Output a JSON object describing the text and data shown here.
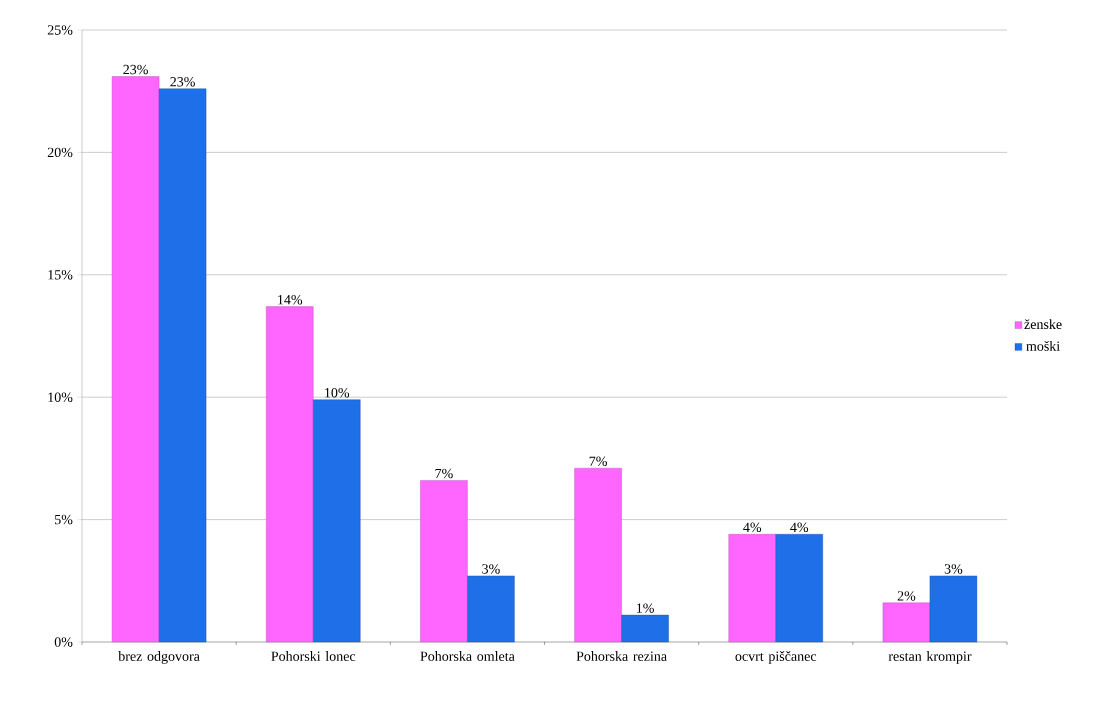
{
  "chart_data": {
    "type": "bar",
    "categories": [
      "brez odgovora",
      "Pohorski lonec",
      "Pohorska omleta",
      "Pohorska rezina",
      "ocvrt piščanec",
      "restan krompir"
    ],
    "series": [
      {
        "name": "ženske",
        "color": "#ff66ff",
        "values": [
          23.1,
          13.7,
          6.6,
          7.1,
          4.4,
          1.6
        ],
        "value_labels": [
          "23%",
          "14%",
          "7%",
          "7%",
          "4%",
          "2%"
        ]
      },
      {
        "name": "moški",
        "color": "#1f6fe8",
        "values": [
          22.6,
          9.9,
          2.7,
          1.1,
          4.4,
          2.7
        ],
        "value_labels": [
          "23%",
          "10%",
          "3%",
          "1%",
          "4%",
          "3%"
        ]
      }
    ],
    "ylim": [
      0,
      25
    ],
    "yticks": [
      {
        "value": 0,
        "label": "0%"
      },
      {
        "value": 5,
        "label": "5%"
      },
      {
        "value": 10,
        "label": "10%"
      },
      {
        "value": 15,
        "label": "15%"
      },
      {
        "value": 20,
        "label": "20%"
      },
      {
        "value": 25,
        "label": "25%"
      }
    ],
    "grid": "y",
    "legend": "right"
  }
}
